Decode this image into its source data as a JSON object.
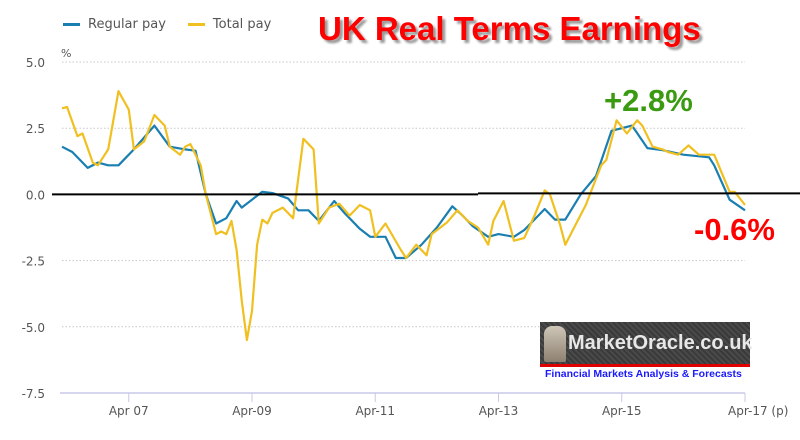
{
  "title": "UK Real Terms Earnings",
  "annotations": {
    "peak": "+2.8%",
    "latest": "-0.6%"
  },
  "colors": {
    "regular": "#1a7fb0",
    "total": "#f0c020",
    "title": "#ff0000",
    "peak": "#3a9a10",
    "latest": "#ff0000"
  },
  "logo": {
    "text": "MarketOracle.co.uk",
    "tagline": "Financial Markets Analysis & Forecasts"
  },
  "chart_data": {
    "type": "line",
    "ylabel": "%",
    "ylim": [
      -7.5,
      5.0
    ],
    "yticks": [
      5.0,
      2.5,
      0.0,
      -2.5,
      -5.0,
      -7.5
    ],
    "ytick_labels": [
      "5.0",
      "2.5",
      "0.0",
      "-2.5",
      "-5.0",
      "-7.5"
    ],
    "xlim": [
      "2006-03",
      "2017-04"
    ],
    "xticks": [
      "2007-04",
      "2009-04",
      "2011-04",
      "2013-04",
      "2015-04",
      "2017-04"
    ],
    "xtick_labels": [
      "Apr 07",
      "Apr-09",
      "Apr-11",
      "Apr-13",
      "Apr-15",
      "Apr-17 (p)"
    ],
    "grid": true,
    "legend": "top-left",
    "series": [
      {
        "name": "Regular pay",
        "color": "#1a7fb0",
        "points": [
          [
            "2006-03",
            1.8
          ],
          [
            "2006-05",
            1.6
          ],
          [
            "2006-08",
            1.0
          ],
          [
            "2006-10",
            1.2
          ],
          [
            "2006-12",
            1.1
          ],
          [
            "2007-02",
            1.1
          ],
          [
            "2007-05",
            1.7
          ],
          [
            "2007-09",
            2.6
          ],
          [
            "2007-12",
            1.8
          ],
          [
            "2008-03",
            1.7
          ],
          [
            "2008-05",
            1.65
          ],
          [
            "2008-07",
            0.0
          ],
          [
            "2008-09",
            -1.1
          ],
          [
            "2008-11",
            -0.9
          ],
          [
            "2009-01",
            -0.25
          ],
          [
            "2009-02",
            -0.5
          ],
          [
            "2009-06",
            0.1
          ],
          [
            "2009-08",
            0.05
          ],
          [
            "2009-11",
            -0.15
          ],
          [
            "2010-01",
            -0.6
          ],
          [
            "2010-03",
            -0.6
          ],
          [
            "2010-05",
            -1.0
          ],
          [
            "2010-08",
            -0.25
          ],
          [
            "2010-10",
            -0.7
          ],
          [
            "2011-01",
            -1.3
          ],
          [
            "2011-03",
            -1.6
          ],
          [
            "2011-06",
            -1.6
          ],
          [
            "2011-08",
            -2.4
          ],
          [
            "2011-10",
            -2.4
          ],
          [
            "2012-01",
            -1.9
          ],
          [
            "2012-04",
            -1.25
          ],
          [
            "2012-07",
            -0.45
          ],
          [
            "2012-09",
            -0.8
          ],
          [
            "2012-11",
            -1.2
          ],
          [
            "2013-02",
            -1.6
          ],
          [
            "2013-04",
            -1.5
          ],
          [
            "2013-07",
            -1.6
          ],
          [
            "2013-09",
            -1.35
          ],
          [
            "2014-01",
            -0.55
          ],
          [
            "2014-03",
            -0.95
          ],
          [
            "2014-05",
            -0.95
          ],
          [
            "2014-08",
            0.0
          ],
          [
            "2014-11",
            0.7
          ],
          [
            "2015-02",
            2.4
          ],
          [
            "2015-06",
            2.6
          ],
          [
            "2015-09",
            1.75
          ],
          [
            "2015-12",
            1.67
          ],
          [
            "2016-04",
            1.5
          ],
          [
            "2016-09",
            1.4
          ],
          [
            "2016-10",
            1.1
          ],
          [
            "2017-01",
            -0.2
          ],
          [
            "2017-04",
            -0.6
          ]
        ]
      },
      {
        "name": "Total pay",
        "color": "#f0c020",
        "points": [
          [
            "2006-03",
            3.25
          ],
          [
            "2006-04",
            3.3
          ],
          [
            "2006-06",
            2.2
          ],
          [
            "2006-07",
            2.3
          ],
          [
            "2006-09",
            1.2
          ],
          [
            "2006-10",
            1.1
          ],
          [
            "2006-12",
            1.7
          ],
          [
            "2007-02",
            3.9
          ],
          [
            "2007-04",
            3.2
          ],
          [
            "2007-05",
            1.7
          ],
          [
            "2007-07",
            2.0
          ],
          [
            "2007-09",
            3.0
          ],
          [
            "2007-11",
            2.6
          ],
          [
            "2007-12",
            1.8
          ],
          [
            "2008-02",
            1.5
          ],
          [
            "2008-03",
            1.8
          ],
          [
            "2008-04",
            1.9
          ],
          [
            "2008-06",
            1.1
          ],
          [
            "2008-07",
            0.0
          ],
          [
            "2008-09",
            -1.5
          ],
          [
            "2008-10",
            -1.4
          ],
          [
            "2008-11",
            -1.5
          ],
          [
            "2008-12",
            -1.0
          ],
          [
            "2009-01",
            -2.1
          ],
          [
            "2009-02",
            -4.0
          ],
          [
            "2009-03",
            -5.5
          ],
          [
            "2009-04",
            -4.4
          ],
          [
            "2009-05",
            -1.9
          ],
          [
            "2009-06",
            -0.95
          ],
          [
            "2009-07",
            -1.1
          ],
          [
            "2009-08",
            -0.7
          ],
          [
            "2009-10",
            -0.5
          ],
          [
            "2009-12",
            -0.9
          ],
          [
            "2010-02",
            2.1
          ],
          [
            "2010-04",
            1.7
          ],
          [
            "2010-05",
            -1.1
          ],
          [
            "2010-07",
            -0.5
          ],
          [
            "2010-09",
            -0.35
          ],
          [
            "2010-11",
            -0.8
          ],
          [
            "2011-01",
            -0.4
          ],
          [
            "2011-03",
            -0.6
          ],
          [
            "2011-04",
            -1.6
          ],
          [
            "2011-06",
            -1.1
          ],
          [
            "2011-09",
            -2.1
          ],
          [
            "2011-10",
            -2.4
          ],
          [
            "2011-12",
            -1.9
          ],
          [
            "2012-02",
            -2.3
          ],
          [
            "2012-03",
            -1.5
          ],
          [
            "2012-05",
            -1.2
          ],
          [
            "2012-06",
            -1.05
          ],
          [
            "2012-08",
            -0.6
          ],
          [
            "2012-10",
            -1.0
          ],
          [
            "2012-12",
            -1.25
          ],
          [
            "2013-02",
            -1.9
          ],
          [
            "2013-03",
            -1.0
          ],
          [
            "2013-05",
            -0.25
          ],
          [
            "2013-07",
            -1.75
          ],
          [
            "2013-09",
            -1.65
          ],
          [
            "2013-11",
            -0.8
          ],
          [
            "2014-01",
            0.15
          ],
          [
            "2014-02",
            0.0
          ],
          [
            "2014-04",
            -1.15
          ],
          [
            "2014-05",
            -1.9
          ],
          [
            "2014-07",
            -1.15
          ],
          [
            "2014-09",
            -0.4
          ],
          [
            "2014-12",
            1.1
          ],
          [
            "2015-01",
            1.3
          ],
          [
            "2015-03",
            2.8
          ],
          [
            "2015-05",
            2.3
          ],
          [
            "2015-07",
            2.8
          ],
          [
            "2015-08",
            2.6
          ],
          [
            "2015-10",
            1.8
          ],
          [
            "2015-12",
            1.7
          ],
          [
            "2016-01",
            1.6
          ],
          [
            "2016-03",
            1.5
          ],
          [
            "2016-05",
            1.85
          ],
          [
            "2016-07",
            1.5
          ],
          [
            "2016-10",
            1.5
          ],
          [
            "2017-01",
            0.1
          ],
          [
            "2017-02",
            0.1
          ],
          [
            "2017-04",
            -0.4
          ]
        ]
      }
    ]
  }
}
